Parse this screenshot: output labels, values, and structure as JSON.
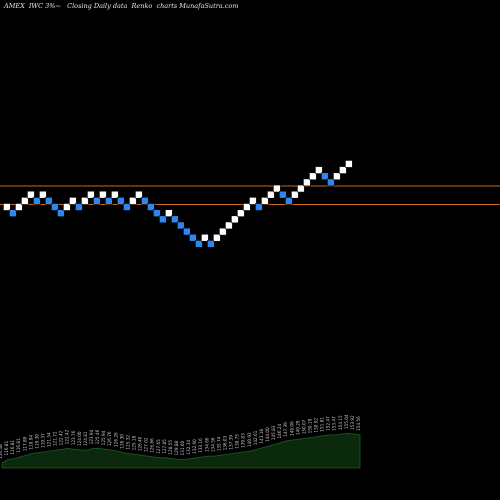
{
  "title": "AMEX  IWC 3%~   Closing Daily data  Renko  charts MunafaSutra.com",
  "colors": {
    "background": "#000000",
    "up_brick": "#ffffff",
    "down_brick": "#2f86ef",
    "reference_line": "#c8691c",
    "volume_fill": "#0b2a0d",
    "volume_edge": "#1c5c20",
    "volume_label": "#c9c9c9"
  },
  "chart_data": {
    "type": "renko",
    "reference_lines": [
      {
        "level": 3
      },
      {
        "level": 0
      }
    ],
    "bricks": [
      {
        "dir": "up",
        "level": 0
      },
      {
        "dir": "down",
        "level": -1
      },
      {
        "dir": "up",
        "level": 0
      },
      {
        "dir": "up",
        "level": 1
      },
      {
        "dir": "up",
        "level": 2
      },
      {
        "dir": "down",
        "level": 1
      },
      {
        "dir": "up",
        "level": 2
      },
      {
        "dir": "down",
        "level": 1
      },
      {
        "dir": "down",
        "level": 0
      },
      {
        "dir": "down",
        "level": -1
      },
      {
        "dir": "up",
        "level": 0
      },
      {
        "dir": "up",
        "level": 1
      },
      {
        "dir": "down",
        "level": 0
      },
      {
        "dir": "up",
        "level": 1
      },
      {
        "dir": "up",
        "level": 2
      },
      {
        "dir": "down",
        "level": 1
      },
      {
        "dir": "up",
        "level": 2
      },
      {
        "dir": "down",
        "level": 1
      },
      {
        "dir": "up",
        "level": 2
      },
      {
        "dir": "down",
        "level": 1
      },
      {
        "dir": "down",
        "level": 0
      },
      {
        "dir": "up",
        "level": 1
      },
      {
        "dir": "up",
        "level": 2
      },
      {
        "dir": "down",
        "level": 1
      },
      {
        "dir": "down",
        "level": 0
      },
      {
        "dir": "down",
        "level": -1
      },
      {
        "dir": "down",
        "level": -2
      },
      {
        "dir": "up",
        "level": -1
      },
      {
        "dir": "down",
        "level": -2
      },
      {
        "dir": "down",
        "level": -3
      },
      {
        "dir": "down",
        "level": -4
      },
      {
        "dir": "down",
        "level": -5
      },
      {
        "dir": "down",
        "level": -6
      },
      {
        "dir": "up",
        "level": -5
      },
      {
        "dir": "down",
        "level": -6
      },
      {
        "dir": "up",
        "level": -5
      },
      {
        "dir": "up",
        "level": -4
      },
      {
        "dir": "up",
        "level": -3
      },
      {
        "dir": "up",
        "level": -2
      },
      {
        "dir": "up",
        "level": -1
      },
      {
        "dir": "up",
        "level": 0
      },
      {
        "dir": "up",
        "level": 1
      },
      {
        "dir": "down",
        "level": 0
      },
      {
        "dir": "up",
        "level": 1
      },
      {
        "dir": "up",
        "level": 2
      },
      {
        "dir": "up",
        "level": 3
      },
      {
        "dir": "down",
        "level": 2
      },
      {
        "dir": "down",
        "level": 1
      },
      {
        "dir": "up",
        "level": 2
      },
      {
        "dir": "up",
        "level": 3
      },
      {
        "dir": "up",
        "level": 4
      },
      {
        "dir": "up",
        "level": 5
      },
      {
        "dir": "up",
        "level": 6
      },
      {
        "dir": "down",
        "level": 5
      },
      {
        "dir": "down",
        "level": 4
      },
      {
        "dir": "up",
        "level": 5
      },
      {
        "dir": "up",
        "level": 6
      },
      {
        "dir": "up",
        "level": 7
      }
    ],
    "volume": {
      "values": [
        6,
        10,
        11,
        13,
        15,
        17,
        18,
        19,
        20,
        21,
        22,
        23,
        22,
        21,
        21,
        23,
        23,
        22,
        21,
        20,
        18,
        17,
        16,
        15,
        14,
        13,
        12,
        12,
        11,
        10,
        10,
        11,
        12,
        13,
        14,
        14,
        15,
        16,
        17,
        18,
        19,
        20,
        22,
        24,
        26,
        28,
        30,
        32,
        33,
        34,
        35,
        36,
        37,
        38,
        39,
        39,
        40,
        41,
        40,
        39
      ],
      "labels": [
        "116.48",
        "116.81",
        "116.81",
        "116.81",
        "117.89",
        "118.94",
        "119.30",
        "119.37",
        "121.54",
        "121.72",
        "122.42",
        "122.42",
        "123.76",
        "124.00",
        "124.81",
        "123.94",
        "125.46",
        "125.94",
        "126.76",
        "126.26",
        "126.30",
        "125.32",
        "125.18",
        "126.40",
        "127.02",
        "126.86",
        "127.65",
        "127.85",
        "128.55",
        "129.88",
        "131.60",
        "132.34",
        "132.60",
        "133.16",
        "134.66",
        "134.56",
        "135.74",
        "136.03",
        "137.39",
        "138.75",
        "139.83",
        "140.92",
        "142.61",
        "143.18",
        "144.00",
        "145.83",
        "146.24",
        "147.39",
        "148.06",
        "149.29",
        "150.07",
        "150.19",
        "150.92",
        "151.81",
        "152.47",
        "153.47",
        "154.15",
        "155.04",
        "153.92",
        "154.56"
      ]
    }
  }
}
